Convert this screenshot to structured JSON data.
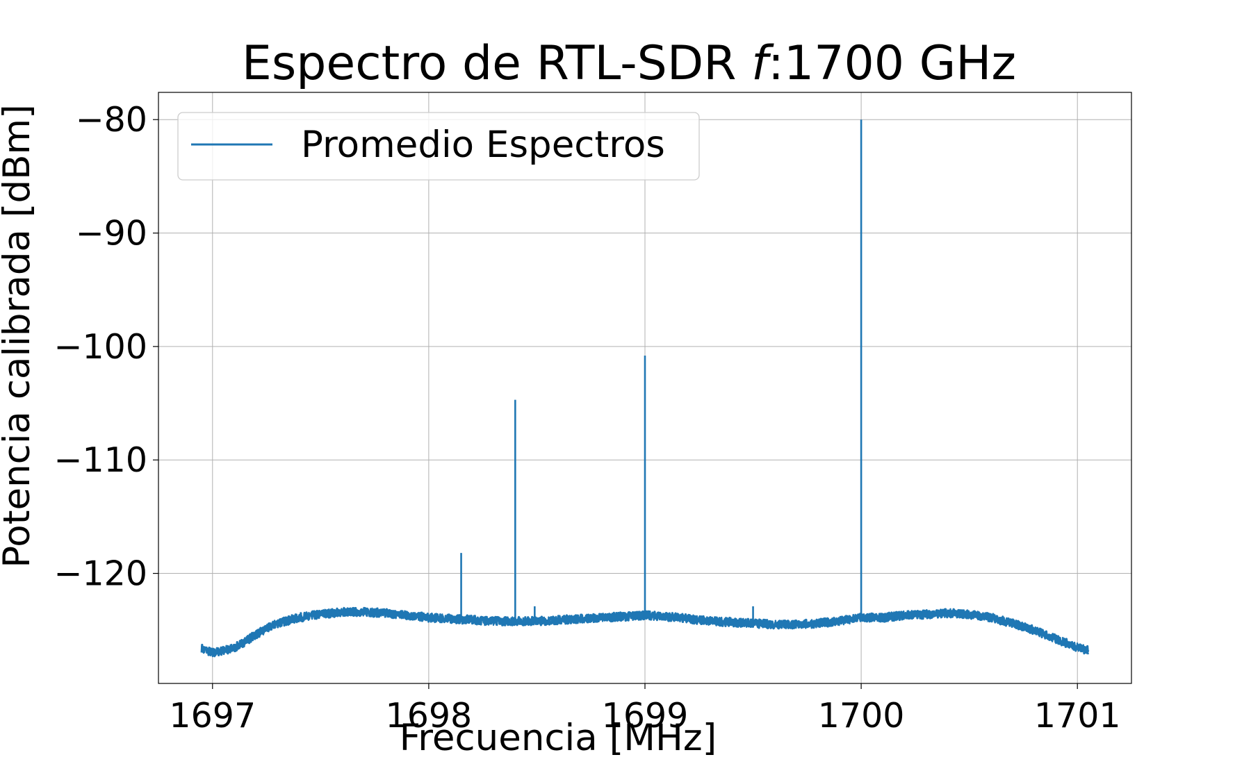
{
  "chart_data": {
    "type": "line",
    "title": {
      "prefix": "Espectro de RTL-SDR ",
      "italic": "f",
      "suffix": ":1700 GHz"
    },
    "xlabel": "Frecuencia [MHz]",
    "ylabel": "Potencia calibrada [dBm]",
    "xlim": [
      1696.75,
      1701.25
    ],
    "ylim": [
      -129.7,
      -77.6
    ],
    "xticks": [
      1697,
      1698,
      1699,
      1700,
      1701
    ],
    "yticks": [
      -120,
      -110,
      -100,
      -90,
      -80
    ],
    "xtick_labels": [
      "1697",
      "1698",
      "1699",
      "1700",
      "1701"
    ],
    "ytick_labels": [
      "−120",
      "−110",
      "−100",
      "−90",
      "−80"
    ],
    "grid": true,
    "legend": {
      "position": "top-left",
      "entries": [
        "Promedio Espectros"
      ]
    },
    "color": "#1f77b4",
    "series": [
      {
        "name": "Promedio Espectros",
        "x": [
          1696.95,
          1697.0,
          1697.1,
          1697.2,
          1697.3,
          1697.4,
          1697.5,
          1697.6,
          1697.7,
          1697.8,
          1697.9,
          1698.0,
          1698.1,
          1698.2,
          1698.3,
          1698.4,
          1698.5,
          1698.6,
          1698.7,
          1698.8,
          1698.9,
          1699.0,
          1699.1,
          1699.2,
          1699.3,
          1699.4,
          1699.5,
          1699.6,
          1699.7,
          1699.8,
          1699.9,
          1700.0,
          1700.1,
          1700.2,
          1700.3,
          1700.4,
          1700.5,
          1700.6,
          1700.7,
          1700.8,
          1700.9,
          1701.0,
          1701.05
        ],
        "y": [
          -126.6,
          -127.0,
          -126.6,
          -125.4,
          -124.4,
          -123.9,
          -123.6,
          -123.4,
          -123.4,
          -123.5,
          -123.7,
          -123.9,
          -124.0,
          -124.1,
          -124.2,
          -124.2,
          -124.2,
          -124.1,
          -124.0,
          -123.9,
          -123.8,
          -123.7,
          -123.8,
          -124.0,
          -124.2,
          -124.3,
          -124.4,
          -124.5,
          -124.5,
          -124.4,
          -124.2,
          -123.9,
          -123.9,
          -123.7,
          -123.6,
          -123.5,
          -123.6,
          -123.9,
          -124.4,
          -125.0,
          -125.8,
          -126.5,
          -126.8
        ],
        "peaks": [
          {
            "x": 1698.15,
            "y": -118.2
          },
          {
            "x": 1698.4,
            "y": -104.7
          },
          {
            "x": 1698.49,
            "y": -122.9
          },
          {
            "x": 1699.0,
            "y": -100.8
          },
          {
            "x": 1699.5,
            "y": -122.9
          },
          {
            "x": 1700.0,
            "y": -80.0
          }
        ]
      }
    ]
  }
}
